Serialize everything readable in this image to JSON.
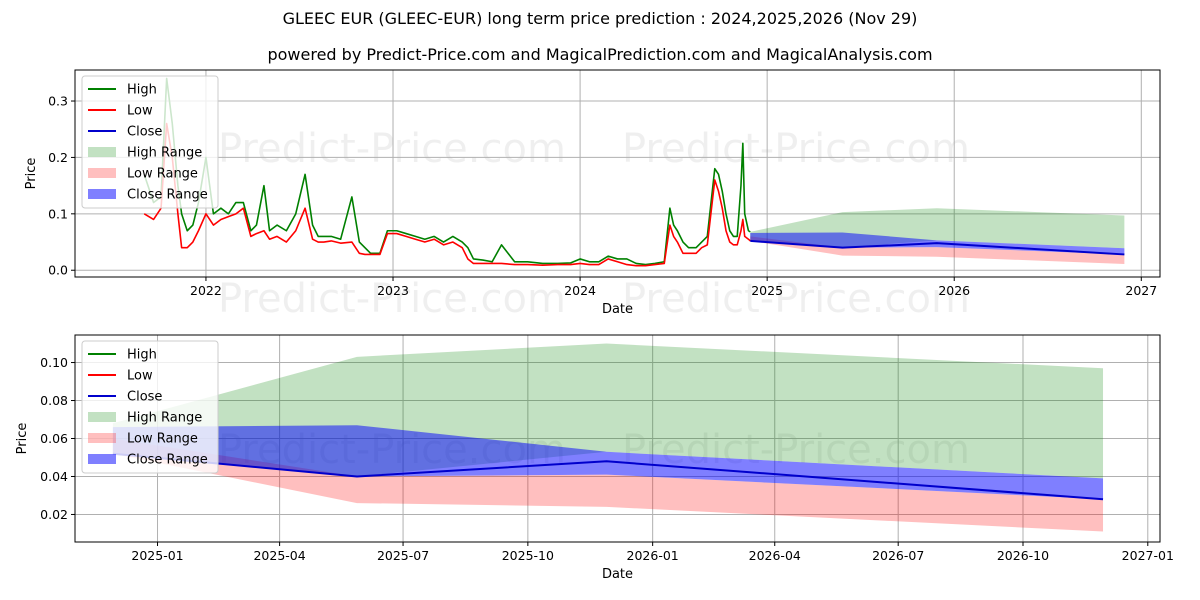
{
  "header": {
    "title": "GLEEC EUR (GLEEC-EUR) long term price prediction : 2024,2025,2026 (Nov 29)",
    "subtitle": "powered by Predict-Price.com and MagicalPrediction.com and MagicalAnalysis.com"
  },
  "watermark": "Predict-Price.com",
  "colors": {
    "high": "#008000",
    "low": "#ff0000",
    "close": "#0000cc",
    "high_range": "#c2e0c2",
    "low_range": "#ffbcbc",
    "close_range": "#7f7fff",
    "grid": "#b0b0b0"
  },
  "legend": [
    "High",
    "Low",
    "Close",
    "High Range",
    "Low Range",
    "Close Range"
  ],
  "chart_data": [
    {
      "type": "line",
      "title": "Historical and forecast price (long term)",
      "xlabel": "Date",
      "ylabel": "Price",
      "xlim": [
        2021.3,
        2027.1
      ],
      "ylim": [
        -0.012,
        0.355
      ],
      "xticks": [
        2022,
        2023,
        2024,
        2025,
        2026,
        2027
      ],
      "xtick_labels": [
        "2022",
        "2023",
        "2024",
        "2025",
        "2026",
        "2027"
      ],
      "yticks": [
        0.0,
        0.1,
        0.2,
        0.3
      ],
      "ytick_labels": [
        "0.0",
        "0.1",
        "0.2",
        "0.3"
      ],
      "grid": true,
      "legend_position": "upper left",
      "series": [
        {
          "name": "High",
          "x": [
            2021.67,
            2021.72,
            2021.76,
            2021.79,
            2021.82,
            2021.85,
            2021.87,
            2021.9,
            2021.93,
            2021.96,
            2022.0,
            2022.04,
            2022.08,
            2022.12,
            2022.16,
            2022.2,
            2022.24,
            2022.27,
            2022.31,
            2022.34,
            2022.38,
            2022.43,
            2022.48,
            2022.53,
            2022.57,
            2022.6,
            2022.63,
            2022.67,
            2022.72,
            2022.78,
            2022.82,
            2022.85,
            2022.88,
            2022.93,
            2022.97,
            2023.02,
            2023.07,
            2023.12,
            2023.17,
            2023.22,
            2023.27,
            2023.32,
            2023.37,
            2023.4,
            2023.43,
            2023.48,
            2023.53,
            2023.58,
            2023.65,
            2023.72,
            2023.8,
            2023.88,
            2023.95,
            2024.0,
            2024.05,
            2024.1,
            2024.15,
            2024.2,
            2024.25,
            2024.3,
            2024.35,
            2024.4,
            2024.45,
            2024.48,
            2024.5,
            2024.52,
            2024.55,
            2024.58,
            2024.62,
            2024.65,
            2024.68,
            2024.72,
            2024.74,
            2024.76,
            2024.78,
            2024.8,
            2024.82,
            2024.84,
            2024.86,
            2024.87,
            2024.88,
            2024.9,
            2024.91
          ],
          "values": [
            0.17,
            0.12,
            0.13,
            0.34,
            0.26,
            0.15,
            0.1,
            0.07,
            0.08,
            0.12,
            0.2,
            0.1,
            0.11,
            0.1,
            0.12,
            0.12,
            0.07,
            0.08,
            0.15,
            0.07,
            0.08,
            0.07,
            0.1,
            0.17,
            0.08,
            0.06,
            0.06,
            0.06,
            0.055,
            0.13,
            0.05,
            0.04,
            0.03,
            0.03,
            0.07,
            0.07,
            0.065,
            0.06,
            0.055,
            0.06,
            0.05,
            0.06,
            0.05,
            0.04,
            0.02,
            0.018,
            0.015,
            0.045,
            0.015,
            0.015,
            0.012,
            0.012,
            0.013,
            0.02,
            0.015,
            0.015,
            0.025,
            0.02,
            0.02,
            0.012,
            0.01,
            0.012,
            0.015,
            0.11,
            0.08,
            0.07,
            0.05,
            0.04,
            0.04,
            0.05,
            0.06,
            0.18,
            0.17,
            0.14,
            0.1,
            0.07,
            0.06,
            0.06,
            0.15,
            0.225,
            0.1,
            0.07,
            0.068
          ]
        },
        {
          "name": "Low",
          "x": [
            2021.67,
            2021.72,
            2021.76,
            2021.79,
            2021.82,
            2021.85,
            2021.87,
            2021.9,
            2021.93,
            2021.96,
            2022.0,
            2022.04,
            2022.08,
            2022.12,
            2022.16,
            2022.2,
            2022.24,
            2022.27,
            2022.31,
            2022.34,
            2022.38,
            2022.43,
            2022.48,
            2022.53,
            2022.57,
            2022.6,
            2022.63,
            2022.67,
            2022.72,
            2022.78,
            2022.82,
            2022.85,
            2022.88,
            2022.93,
            2022.97,
            2023.02,
            2023.07,
            2023.12,
            2023.17,
            2023.22,
            2023.27,
            2023.32,
            2023.37,
            2023.4,
            2023.43,
            2023.48,
            2023.53,
            2023.58,
            2023.65,
            2023.72,
            2023.8,
            2023.88,
            2023.95,
            2024.0,
            2024.05,
            2024.1,
            2024.15,
            2024.2,
            2024.25,
            2024.3,
            2024.35,
            2024.4,
            2024.45,
            2024.48,
            2024.5,
            2024.52,
            2024.55,
            2024.58,
            2024.62,
            2024.65,
            2024.68,
            2024.72,
            2024.74,
            2024.76,
            2024.78,
            2024.8,
            2024.82,
            2024.84,
            2024.86,
            2024.87,
            2024.88,
            2024.9,
            2024.91
          ],
          "values": [
            0.1,
            0.09,
            0.11,
            0.26,
            0.2,
            0.1,
            0.04,
            0.04,
            0.05,
            0.07,
            0.1,
            0.08,
            0.09,
            0.095,
            0.1,
            0.11,
            0.06,
            0.065,
            0.07,
            0.055,
            0.06,
            0.05,
            0.07,
            0.11,
            0.055,
            0.05,
            0.05,
            0.052,
            0.048,
            0.05,
            0.03,
            0.028,
            0.028,
            0.028,
            0.065,
            0.065,
            0.06,
            0.055,
            0.05,
            0.055,
            0.045,
            0.05,
            0.04,
            0.02,
            0.012,
            0.012,
            0.012,
            0.012,
            0.01,
            0.01,
            0.009,
            0.01,
            0.01,
            0.012,
            0.01,
            0.01,
            0.02,
            0.015,
            0.01,
            0.008,
            0.008,
            0.01,
            0.012,
            0.08,
            0.06,
            0.05,
            0.03,
            0.03,
            0.03,
            0.04,
            0.045,
            0.16,
            0.14,
            0.11,
            0.07,
            0.05,
            0.045,
            0.045,
            0.07,
            0.09,
            0.06,
            0.055,
            0.052
          ]
        },
        {
          "name": "Close",
          "x": [
            "2024-11-29",
            "2025-05-28",
            "2025-11-28",
            "2026-11-29"
          ],
          "values": [
            0.052,
            0.04,
            0.048,
            0.028
          ]
        },
        {
          "name": "High Range",
          "x": [
            "2024-11-29",
            "2025-05-28",
            "2025-11-28",
            "2026-11-29"
          ],
          "upper": [
            0.068,
            0.103,
            0.11,
            0.097
          ],
          "lower": [
            0.052,
            0.04,
            0.053,
            0.039
          ]
        },
        {
          "name": "Low Range",
          "x": [
            "2024-11-29",
            "2025-05-28",
            "2025-11-28",
            "2026-11-29"
          ],
          "upper": [
            0.06,
            0.04,
            0.041,
            0.028
          ],
          "lower": [
            0.052,
            0.026,
            0.024,
            0.011
          ]
        },
        {
          "name": "Close Range",
          "x": [
            "2024-11-29",
            "2025-05-28",
            "2025-11-28",
            "2026-11-29"
          ],
          "upper": [
            0.066,
            0.067,
            0.053,
            0.039
          ],
          "lower": [
            0.052,
            0.04,
            0.041,
            0.028
          ]
        }
      ]
    },
    {
      "type": "line",
      "title": "Forecast detail",
      "xlabel": "Date",
      "ylabel": "Price",
      "xlim": [
        "2024-11-01",
        "2027-01-10"
      ],
      "ylim": [
        0.0055,
        0.1145
      ],
      "xticks": [
        "2025-01-01",
        "2025-04-01",
        "2025-07-01",
        "2025-10-01",
        "2026-01-01",
        "2026-04-01",
        "2026-07-01",
        "2026-10-01",
        "2027-01-01"
      ],
      "xtick_labels": [
        "2025-01",
        "2025-04",
        "2025-07",
        "2025-10",
        "2026-01",
        "2026-04",
        "2026-07",
        "2026-10",
        "2027-01"
      ],
      "yticks": [
        0.02,
        0.04,
        0.06,
        0.08,
        0.1
      ],
      "ytick_labels": [
        "0.02",
        "0.04",
        "0.06",
        "0.08",
        "0.10"
      ],
      "grid": true,
      "legend_position": "upper left",
      "series": [
        {
          "name": "Close",
          "x": [
            "2024-11-29",
            "2025-05-28",
            "2025-11-28",
            "2026-11-29"
          ],
          "values": [
            0.052,
            0.04,
            0.048,
            0.028
          ]
        },
        {
          "name": "High Range",
          "x": [
            "2024-11-29",
            "2025-05-28",
            "2025-11-28",
            "2026-11-29"
          ],
          "upper": [
            0.068,
            0.103,
            0.11,
            0.097
          ],
          "lower": [
            0.052,
            0.04,
            0.053,
            0.039
          ]
        },
        {
          "name": "Low Range",
          "x": [
            "2024-11-29",
            "2025-05-28",
            "2025-11-28",
            "2026-11-29"
          ],
          "upper": [
            0.06,
            0.04,
            0.041,
            0.028
          ],
          "lower": [
            0.052,
            0.026,
            0.024,
            0.011
          ]
        },
        {
          "name": "Close Range",
          "x": [
            "2024-11-29",
            "2025-05-28",
            "2025-11-28",
            "2026-11-29"
          ],
          "upper": [
            0.066,
            0.067,
            0.053,
            0.039
          ],
          "lower": [
            0.052,
            0.04,
            0.041,
            0.028
          ]
        }
      ]
    }
  ]
}
